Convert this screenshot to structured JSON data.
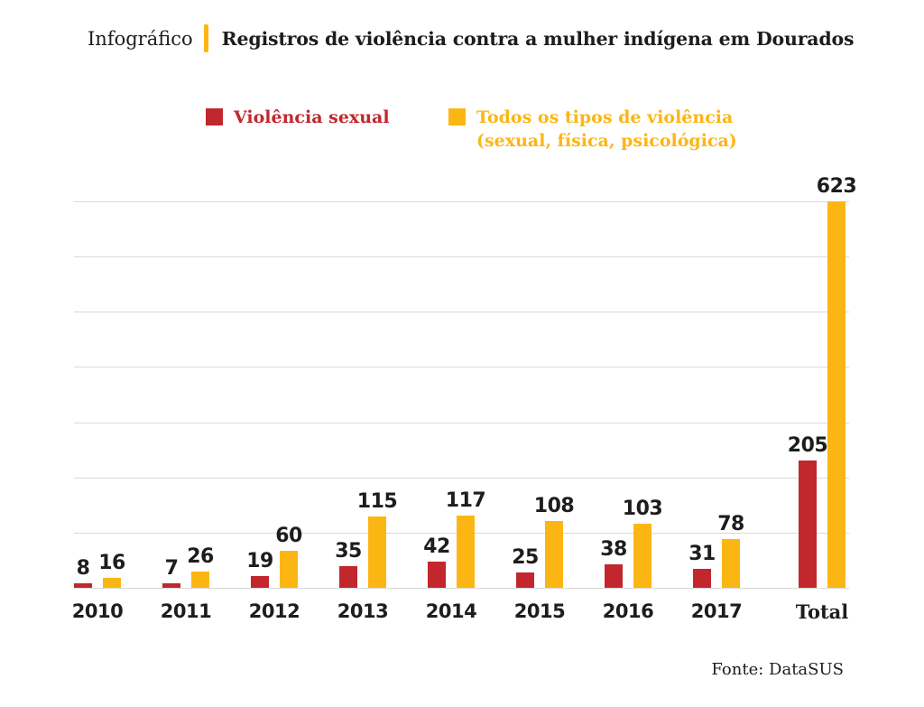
{
  "header": {
    "kicker": "Infográfico",
    "title": "Registros de violência contra a mulher indígena em Dourados",
    "divider_color": "#fcb614"
  },
  "legend": {
    "position": "top",
    "items": [
      {
        "label": "Violência sexual",
        "color": "#c1272d"
      },
      {
        "label": "Todos os tipos de violência",
        "sublabel": "(sexual, física, psicológica)",
        "color": "#fcb614"
      }
    ]
  },
  "chart_data": {
    "type": "bar",
    "title": "Registros de violência contra a mulher indígena em Dourados",
    "categories": [
      "2010",
      "2011",
      "2012",
      "2013",
      "2014",
      "2015",
      "2016",
      "2017",
      "Total"
    ],
    "series": [
      {
        "name": "Violência sexual",
        "color": "#c1272d",
        "values": [
          8,
          7,
          19,
          35,
          42,
          25,
          38,
          31,
          205
        ]
      },
      {
        "name": "Todos os tipos de violência (sexual, física, psicológica)",
        "color": "#fcb614",
        "values": [
          16,
          26,
          60,
          115,
          117,
          108,
          103,
          78,
          623
        ]
      }
    ],
    "xlabel": "",
    "ylabel": "",
    "ylim": [
      0,
      623
    ],
    "gridlines": 8,
    "grid_color": "#d9d9d9",
    "value_labels": true,
    "legend_position": "top"
  },
  "footer": {
    "source": "Fonte: DataSUS"
  }
}
